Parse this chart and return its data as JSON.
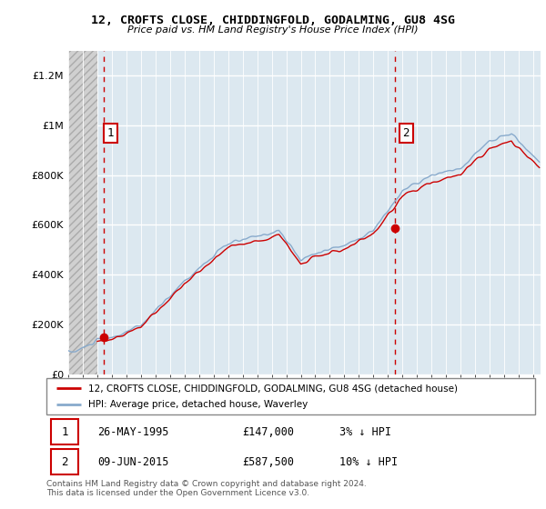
{
  "title1": "12, CROFTS CLOSE, CHIDDINGFOLD, GODALMING, GU8 4SG",
  "title2": "Price paid vs. HM Land Registry's House Price Index (HPI)",
  "legend_line1": "12, CROFTS CLOSE, CHIDDINGFOLD, GODALMING, GU8 4SG (detached house)",
  "legend_line2": "HPI: Average price, detached house, Waverley",
  "annotation1_date": "26-MAY-1995",
  "annotation1_price": "£147,000",
  "annotation1_hpi": "3% ↓ HPI",
  "annotation2_date": "09-JUN-2015",
  "annotation2_price": "£587,500",
  "annotation2_hpi": "10% ↓ HPI",
  "footer": "Contains HM Land Registry data © Crown copyright and database right 2024.\nThis data is licensed under the Open Government Licence v3.0.",
  "red_color": "#cc0000",
  "blue_color": "#88aacc",
  "bg_blue": "#dce8f0",
  "bg_hatch_color": "#c8c8c8",
  "grid_color": "#ffffff",
  "ylim_max": 1300000,
  "yticks": [
    0,
    200000,
    400000,
    600000,
    800000,
    1000000,
    1200000
  ],
  "xmin": 1993.0,
  "xmax": 2025.5,
  "hatch_boundary": 1995.0,
  "point1_x": 1995.42,
  "point1_y": 147000,
  "point2_x": 2015.45,
  "point2_y": 587500
}
